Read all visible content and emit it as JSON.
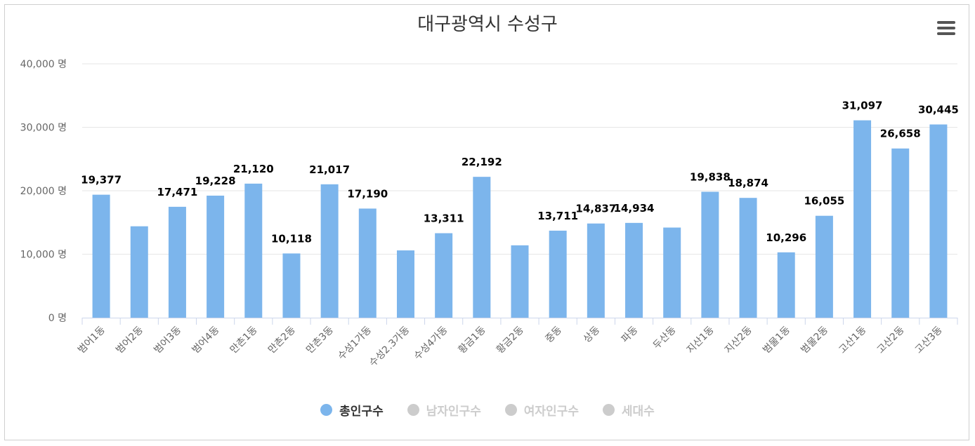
{
  "colors": {
    "series": "#7cb5ec",
    "hidden": "#cccccc",
    "active_text": "#333333",
    "inactive_text": "#cccccc"
  },
  "menu_icon": "hamburger-menu-icon",
  "chart_data": {
    "type": "bar",
    "title": "대구광역시 수성구",
    "ylim": [
      0,
      40000
    ],
    "yticks": [
      0,
      10000,
      20000,
      30000,
      40000
    ],
    "ytick_labels": [
      "0 명",
      "10,000 명",
      "20,000 명",
      "30,000 명",
      "40,000 명"
    ],
    "grid": true,
    "categories": [
      "범어1동",
      "범어2동",
      "범어3동",
      "범어4동",
      "만촌1동",
      "만촌2동",
      "만촌3동",
      "수성1가동",
      "수성2.3가동",
      "수성4가동",
      "황금1동",
      "황금2동",
      "중동",
      "상동",
      "파동",
      "두산동",
      "지산1동",
      "지산2동",
      "범물1동",
      "범물2동",
      "고산1동",
      "고산2동",
      "고산3동"
    ],
    "series": [
      {
        "name": "총인구수",
        "visible": true,
        "values": [
          19377,
          14400,
          17471,
          19228,
          21120,
          10118,
          21017,
          17190,
          10600,
          13311,
          22192,
          11400,
          13711,
          14837,
          14934,
          14200,
          19838,
          18874,
          10296,
          16055,
          31097,
          26658,
          30445
        ],
        "data_labels": [
          "19,377",
          "",
          "17,471",
          "19,228",
          "21,120",
          "10,118",
          "21,017",
          "17,190",
          "",
          "13,311",
          "22,192",
          "",
          "13,711",
          "14,837",
          "14,934",
          "",
          "19,838",
          "18,874",
          "10,296",
          "16,055",
          "31,097",
          "26,658",
          "30,445"
        ]
      }
    ],
    "legend": [
      {
        "name": "총인구수",
        "active": true
      },
      {
        "name": "남자인구수",
        "active": false
      },
      {
        "name": "여자인구수",
        "active": false
      },
      {
        "name": "세대수",
        "active": false
      }
    ]
  }
}
